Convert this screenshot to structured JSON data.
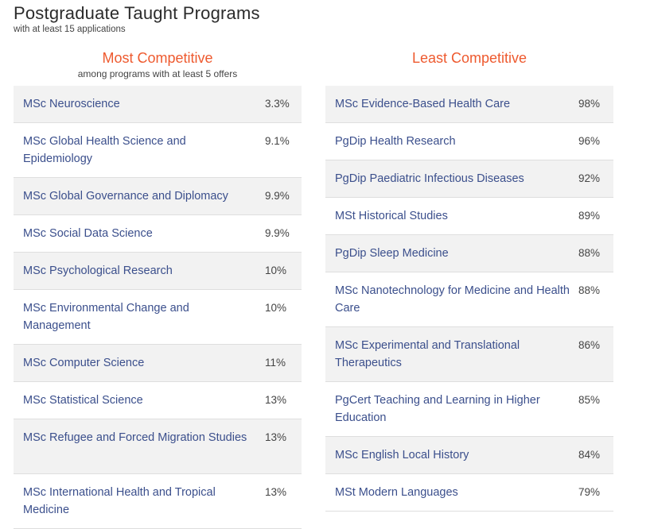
{
  "page": {
    "title": "Postgraduate Taught Programs",
    "subtitle": "with at least 15 applications"
  },
  "most": {
    "heading": "Most Competitive",
    "note": "among programs with at least 5 offers",
    "rows": [
      {
        "name": "MSc Neuroscience",
        "value": "3.3%",
        "lines": 1
      },
      {
        "name": "MSc Global Health Science and Epidemiology",
        "value": "9.1%",
        "lines": 2
      },
      {
        "name": "MSc Global Governance and Diplomacy",
        "value": "9.9%",
        "lines": 1
      },
      {
        "name": "MSc Social Data Science",
        "value": "9.9%",
        "lines": 1
      },
      {
        "name": "MSc Psychological Research",
        "value": "10%",
        "lines": 1
      },
      {
        "name": "MSc Environmental Change and Management",
        "value": "10%",
        "lines": 2
      },
      {
        "name": "MSc Computer Science",
        "value": "11%",
        "lines": 1
      },
      {
        "name": "MSc Statistical Science",
        "value": "13%",
        "lines": 1
      },
      {
        "name": "MSc Refugee and Forced Migration Studies",
        "value": "13%",
        "lines": 2
      },
      {
        "name": "MSc International Health and Tropical Medicine",
        "value": "13%",
        "lines": 2
      }
    ]
  },
  "least": {
    "heading": "Least Competitive",
    "rows": [
      {
        "name": "MSc Evidence-Based Health Care",
        "value": "98%",
        "lines": 1
      },
      {
        "name": "PgDip Health Research",
        "value": "96%",
        "lines": 1
      },
      {
        "name": "PgDip Paediatric Infectious Diseases",
        "value": "92%",
        "lines": 1
      },
      {
        "name": "MSt Historical Studies",
        "value": "89%",
        "lines": 1
      },
      {
        "name": "PgDip Sleep Medicine",
        "value": "88%",
        "lines": 1
      },
      {
        "name": "MSc Nanotechnology for Medicine and Health Care",
        "value": "88%",
        "lines": 2
      },
      {
        "name": "MSc Experimental and Translational Therapeutics",
        "value": "86%",
        "lines": 2
      },
      {
        "name": "PgCert Teaching and Learning in Higher Education",
        "value": "85%",
        "lines": 2
      },
      {
        "name": "MSc English Local History",
        "value": "84%",
        "lines": 1
      },
      {
        "name": "MSt Modern Languages",
        "value": "79%",
        "lines": 1
      }
    ]
  }
}
